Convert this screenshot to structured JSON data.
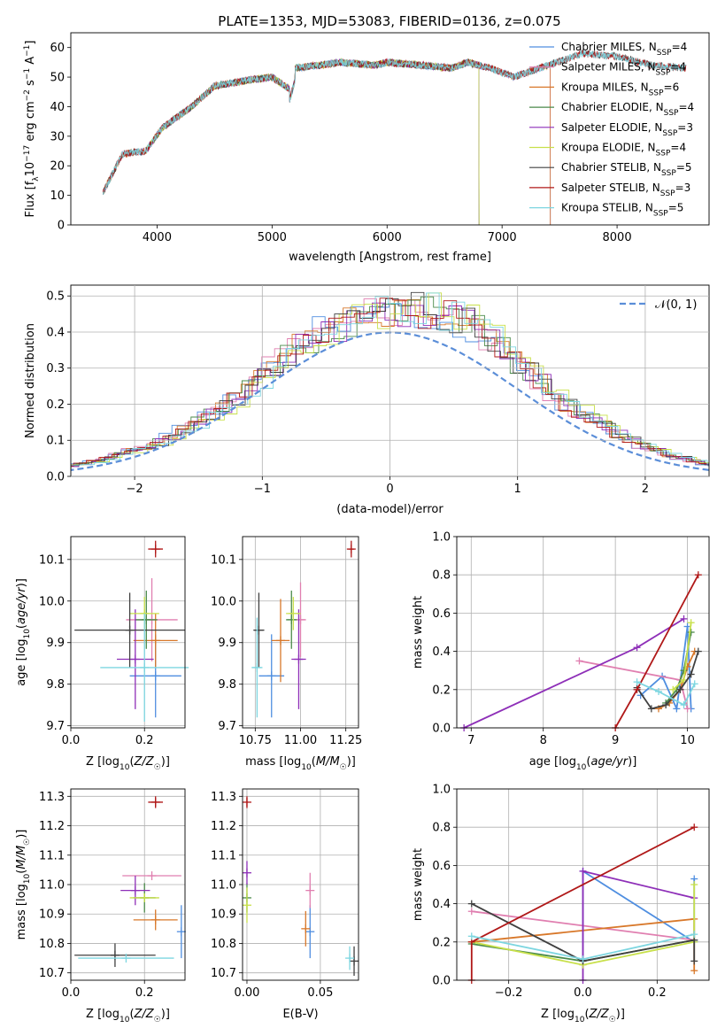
{
  "figure_title": "PLATE=1353, MJD=53083, FIBERID=0136, z=0.075",
  "colors": {
    "Chabrier MILES": "#4f8ee0",
    "Salpeter MILES": "#e07fb0",
    "Kroupa MILES": "#d8782a",
    "Chabrier ELODIE": "#4a8a4a",
    "Salpeter ELODIE": "#8e2fb8",
    "Kroupa ELODIE": "#c8e04a",
    "Chabrier STELIB": "#404040",
    "Salpeter STELIB": "#b01818",
    "Kroupa STELIB": "#7dd6e0",
    "normal": "#5b8ed8"
  },
  "chart_data": [
    {
      "id": "spectrum",
      "type": "line",
      "xlabel": "wavelength [Angstrom, rest frame]",
      "ylabel": "Flux [f_λ10^-17 erg cm^-2 s^-1 A^-1]",
      "xlim": [
        3250,
        8800
      ],
      "ylim": [
        0,
        65
      ],
      "xticks": [
        4000,
        5000,
        6000,
        7000,
        8000
      ],
      "yticks": [
        0,
        10,
        20,
        30,
        40,
        50,
        60
      ],
      "grid": false,
      "legend": "top-right",
      "series": [
        {
          "name": "Chabrier MILES, N_SSP=4",
          "label_base": "Chabrier MILES, N",
          "label_n": "=4",
          "range": [
            3530,
            7420
          ]
        },
        {
          "name": "Salpeter MILES, N_SSP=4",
          "label_base": "Salpeter MILES, N",
          "label_n": "=4",
          "range": [
            3530,
            7420
          ]
        },
        {
          "name": "Kroupa MILES, N_SSP=6",
          "label_base": "Kroupa MILES, N",
          "label_n": "=6",
          "range": [
            3530,
            7420
          ]
        },
        {
          "name": "Chabrier ELODIE, N_SSP=4",
          "label_base": "Chabrier ELODIE, N",
          "label_n": "=4",
          "range": [
            3900,
            6800
          ]
        },
        {
          "name": "Salpeter ELODIE, N_SSP=3",
          "label_base": "Salpeter ELODIE, N",
          "label_n": "=3",
          "range": [
            3900,
            6800
          ]
        },
        {
          "name": "Kroupa ELODIE, N_SSP=4",
          "label_base": "Kroupa ELODIE, N",
          "label_n": "=4",
          "range": [
            3900,
            6800
          ]
        },
        {
          "name": "Chabrier STELIB, N_SSP=5",
          "label_base": "Chabrier STELIB, N",
          "label_n": "=5",
          "range": [
            3530,
            8600
          ]
        },
        {
          "name": "Salpeter STELIB, N_SSP=3",
          "label_base": "Salpeter STELIB, N",
          "label_n": "=3",
          "range": [
            3530,
            8600
          ]
        },
        {
          "name": "Kroupa STELIB, N_SSP=5",
          "label_base": "Kroupa STELIB, N",
          "label_n": "=5",
          "range": [
            3530,
            8600
          ]
        }
      ],
      "data_envelope": {
        "x": [
          3530,
          3700,
          3900,
          4050,
          4300,
          4500,
          4800,
          5000,
          5150,
          5200,
          5400,
          5600,
          5890,
          6000,
          6300,
          6560,
          6700,
          6900,
          7100,
          7400,
          7700,
          8000,
          8300,
          8600
        ],
        "y": [
          11,
          24,
          25,
          33,
          40,
          47,
          49,
          50,
          46,
          53,
          54,
          55,
          54,
          55,
          54,
          53,
          55,
          53,
          50,
          54,
          58,
          57,
          54,
          53
        ]
      }
    },
    {
      "id": "residuals",
      "type": "line",
      "xlabel": "(data-model)/error",
      "ylabel": "Normed distribution",
      "xlim": [
        -2.5,
        2.5
      ],
      "ylim": [
        0,
        0.53
      ],
      "xticks": [
        -2,
        -1,
        0,
        1,
        2
      ],
      "xtick_labels": [
        "−2",
        "−1",
        "0",
        "1",
        "2"
      ],
      "yticks": [
        0,
        0.1,
        0.2,
        0.3,
        0.4,
        0.5
      ],
      "ytick_labels": [
        "0.0",
        "0.1",
        "0.2",
        "0.3",
        "0.4",
        "0.5"
      ],
      "grid": true,
      "legend": "top-right",
      "normal_label": "𝒩(0, 1)",
      "bin_width": 0.1,
      "series_mean": [
        0.022,
        0.025,
        0.03,
        0.035,
        0.04,
        0.05,
        0.06,
        0.07,
        0.08,
        0.095,
        0.11,
        0.13,
        0.15,
        0.17,
        0.19,
        0.21,
        0.24,
        0.27,
        0.3,
        0.33,
        0.36,
        0.38,
        0.4,
        0.41,
        0.43,
        0.44,
        0.45,
        0.45,
        0.46,
        0.46,
        0.46,
        0.45,
        0.44,
        0.43,
        0.41,
        0.38,
        0.35,
        0.32,
        0.29,
        0.26,
        0.23,
        0.2,
        0.18,
        0.16,
        0.14,
        0.12,
        0.1,
        0.085,
        0.07,
        0.06,
        0.05,
        0.042,
        0.035,
        0.03,
        0.025
      ]
    },
    {
      "id": "age_vs_Z",
      "type": "scatter",
      "xlabel": "Z [log10(Z/Z☉)]",
      "ylabel": "age [log10(age/yr)]",
      "xlim": [
        0,
        0.31
      ],
      "ylim": [
        9.695,
        10.155
      ],
      "xticks": [
        0.0,
        0.2
      ],
      "xtick_labels": [
        "0.0",
        "0.2"
      ],
      "yticks": [
        9.7,
        9.8,
        9.9,
        10.0,
        10.1
      ],
      "ytick_labels": [
        "9.7",
        "9.8",
        "9.9",
        "10.0",
        "10.1"
      ],
      "grid": true,
      "points": [
        {
          "model": "Chabrier MILES",
          "x": 0.23,
          "y": 9.82,
          "xerr": 0.07,
          "yerr": 0.1
        },
        {
          "model": "Salpeter MILES",
          "x": 0.22,
          "y": 9.955,
          "xerr": 0.07,
          "yerr": 0.1
        },
        {
          "model": "Kroupa MILES",
          "x": 0.23,
          "y": 9.905,
          "xerr": 0.06,
          "yerr": 0.065
        },
        {
          "model": "Chabrier ELODIE",
          "x": 0.205,
          "y": 9.955,
          "xerr": 0.03,
          "yerr": 0.07
        },
        {
          "model": "Salpeter ELODIE",
          "x": 0.175,
          "y": 9.86,
          "xerr": 0.05,
          "yerr": 0.12
        },
        {
          "model": "Kroupa ELODIE",
          "x": 0.2,
          "y": 9.97,
          "xerr": 0.04,
          "yerr": 0.04
        },
        {
          "model": "Chabrier STELIB",
          "x": 0.16,
          "y": 9.93,
          "xerr": 0.15,
          "yerr": 0.09
        },
        {
          "model": "Salpeter STELIB",
          "x": 0.23,
          "y": 10.125,
          "xerr": 0.02,
          "yerr": 0.02
        },
        {
          "model": "Kroupa STELIB",
          "x": 0.2,
          "y": 9.84,
          "xerr": 0.12,
          "yerr": 0.13
        }
      ]
    },
    {
      "id": "age_vs_mass",
      "type": "scatter",
      "xlabel": "mass [log10(M/M☉)]",
      "ylabel": "",
      "xlim": [
        10.68,
        11.32
      ],
      "ylim": [
        9.695,
        10.155
      ],
      "xticks": [
        10.75,
        11.0,
        11.25
      ],
      "xtick_labels": [
        "10.75",
        "11.00",
        "11.25"
      ],
      "yticks": [
        9.7,
        9.8,
        9.9,
        10.0,
        10.1
      ],
      "ytick_labels": [
        "9.7",
        "9.8",
        "9.9",
        "10.0",
        "10.1"
      ],
      "grid": true,
      "points": [
        {
          "model": "Chabrier MILES",
          "x": 10.84,
          "y": 9.82,
          "xerr": 0.07,
          "yerr": 0.1
        },
        {
          "model": "Salpeter MILES",
          "x": 11.0,
          "y": 9.955,
          "xerr": 0.03,
          "yerr": 0.09
        },
        {
          "model": "Kroupa MILES",
          "x": 10.89,
          "y": 9.905,
          "xerr": 0.05,
          "yerr": 0.1
        },
        {
          "model": "Chabrier ELODIE",
          "x": 10.95,
          "y": 9.955,
          "xerr": 0.03,
          "yerr": 0.07
        },
        {
          "model": "Salpeter ELODIE",
          "x": 10.99,
          "y": 9.86,
          "xerr": 0.04,
          "yerr": 0.12
        },
        {
          "model": "Kroupa ELODIE",
          "x": 10.96,
          "y": 9.97,
          "xerr": 0.04,
          "yerr": 0.04
        },
        {
          "model": "Chabrier STELIB",
          "x": 10.77,
          "y": 9.93,
          "xerr": 0.03,
          "yerr": 0.09
        },
        {
          "model": "Salpeter STELIB",
          "x": 11.28,
          "y": 10.125,
          "xerr": 0.015,
          "yerr": 0.02
        },
        {
          "model": "Kroupa STELIB",
          "x": 10.76,
          "y": 9.84,
          "xerr": 0.03,
          "yerr": 0.12
        }
      ]
    },
    {
      "id": "weight_vs_age",
      "type": "line",
      "xlabel": "age [log10(age/yr)]",
      "ylabel": "mass weight",
      "xlim": [
        6.8,
        10.3
      ],
      "ylim": [
        0,
        1.0
      ],
      "xticks": [
        7,
        8,
        9,
        10
      ],
      "xtick_labels": [
        "7",
        "8",
        "9",
        "10"
      ],
      "yticks": [
        0,
        0.2,
        0.4,
        0.6,
        0.8,
        1.0
      ],
      "ytick_labels": [
        "0.0",
        "0.2",
        "0.4",
        "0.6",
        "0.8",
        "1.0"
      ],
      "grid": true,
      "series": [
        {
          "model": "Chabrier MILES",
          "x": [
            9.35,
            9.65,
            9.85,
            10.0,
            10.05
          ],
          "y": [
            0.17,
            0.27,
            0.1,
            0.53,
            0.1
          ]
        },
        {
          "model": "Salpeter MILES",
          "x": [
            8.5,
            9.9,
            10.0
          ],
          "y": [
            0.35,
            0.25,
            0.1
          ]
        },
        {
          "model": "Kroupa MILES",
          "x": [
            9.6,
            9.75,
            9.9,
            10.0,
            10.1
          ],
          "y": [
            0.1,
            0.13,
            0.2,
            0.32,
            0.4
          ]
        },
        {
          "model": "Chabrier ELODIE",
          "x": [
            9.7,
            9.85,
            9.95,
            10.05
          ],
          "y": [
            0.13,
            0.2,
            0.3,
            0.5
          ]
        },
        {
          "model": "Salpeter ELODIE",
          "x": [
            6.9,
            9.3,
            9.95
          ],
          "y": [
            0.0,
            0.42,
            0.57
          ]
        },
        {
          "model": "Kroupa ELODIE",
          "x": [
            9.8,
            9.95,
            10.05
          ],
          "y": [
            0.2,
            0.25,
            0.55
          ]
        },
        {
          "model": "Chabrier STELIB",
          "x": [
            9.3,
            9.5,
            9.7,
            9.9,
            10.05,
            10.15
          ],
          "y": [
            0.21,
            0.1,
            0.12,
            0.2,
            0.28,
            0.4
          ]
        },
        {
          "model": "Salpeter STELIB",
          "x": [
            9.0,
            9.3,
            10.15
          ],
          "y": [
            0.0,
            0.2,
            0.8
          ]
        },
        {
          "model": "Kroupa STELIB",
          "x": [
            9.3,
            9.6,
            9.95,
            10.1
          ],
          "y": [
            0.24,
            0.19,
            0.12,
            0.23
          ]
        }
      ]
    },
    {
      "id": "mass_vs_Z",
      "type": "scatter",
      "xlabel": "Z [log10(Z/Z☉)]",
      "ylabel": "mass [log10(M/M☉)]",
      "xlim": [
        0,
        0.31
      ],
      "ylim": [
        10.675,
        11.325
      ],
      "xticks": [
        0.0,
        0.2
      ],
      "xtick_labels": [
        "0.0",
        "0.2"
      ],
      "yticks": [
        10.7,
        10.8,
        10.9,
        11.0,
        11.1,
        11.2,
        11.3
      ],
      "ytick_labels": [
        "10.7",
        "10.8",
        "10.9",
        "11.0",
        "11.1",
        "11.2",
        "11.3"
      ],
      "grid": true,
      "points": [
        {
          "model": "Chabrier MILES",
          "x": 0.3,
          "y": 10.84,
          "xerr": 0.0,
          "yerr": 0.09
        },
        {
          "model": "Salpeter MILES",
          "x": 0.22,
          "y": 11.03,
          "xerr": 0.08,
          "yerr": 0.0
        },
        {
          "model": "Kroupa MILES",
          "x": 0.23,
          "y": 10.88,
          "xerr": 0.06,
          "yerr": 0.035
        },
        {
          "model": "Chabrier ELODIE",
          "x": 0.2,
          "y": 10.955,
          "xerr": 0.03,
          "yerr": 0.05
        },
        {
          "model": "Salpeter ELODIE",
          "x": 0.175,
          "y": 10.98,
          "xerr": 0.04,
          "yerr": 0.05
        },
        {
          "model": "Kroupa ELODIE",
          "x": 0.2,
          "y": 10.955,
          "xerr": 0.04,
          "yerr": 0.0
        },
        {
          "model": "Chabrier STELIB",
          "x": 0.12,
          "y": 10.76,
          "xerr": 0.11,
          "yerr": 0.04
        },
        {
          "model": "Salpeter STELIB",
          "x": 0.23,
          "y": 11.28,
          "xerr": 0.02,
          "yerr": 0.02
        },
        {
          "model": "Kroupa STELIB",
          "x": 0.15,
          "y": 10.75,
          "xerr": 0.13,
          "yerr": 0.0
        }
      ]
    },
    {
      "id": "mass_vs_EBV",
      "type": "scatter",
      "xlabel": "E(B-V)",
      "ylabel": "",
      "xlim": [
        -0.003,
        0.076
      ],
      "ylim": [
        10.675,
        11.325
      ],
      "xticks": [
        0.0,
        0.05
      ],
      "xtick_labels": [
        "0.00",
        "0.05"
      ],
      "yticks": [
        10.7,
        10.8,
        10.9,
        11.0,
        11.1,
        11.2,
        11.3
      ],
      "ytick_labels": [
        "10.7",
        "10.8",
        "10.9",
        "11.0",
        "11.1",
        "11.2",
        "11.3"
      ],
      "grid": true,
      "points": [
        {
          "model": "Chabrier MILES",
          "x": 0.043,
          "y": 10.84,
          "xerr": 0.0,
          "yerr": 0.09
        },
        {
          "model": "Salpeter MILES",
          "x": 0.043,
          "y": 10.98,
          "xerr": 0.0,
          "yerr": 0.06
        },
        {
          "model": "Kroupa MILES",
          "x": 0.04,
          "y": 10.85,
          "xerr": 0.0,
          "yerr": 0.06
        },
        {
          "model": "Chabrier ELODIE",
          "x": 0.0,
          "y": 10.955,
          "xerr": 0.0,
          "yerr": 0.05
        },
        {
          "model": "Salpeter ELODIE",
          "x": 0.0,
          "y": 11.04,
          "xerr": 0.0,
          "yerr": 0.04
        },
        {
          "model": "Kroupa ELODIE",
          "x": 0.0,
          "y": 10.93,
          "xerr": 0.0,
          "yerr": 0.06
        },
        {
          "model": "Chabrier STELIB",
          "x": 0.073,
          "y": 10.74,
          "xerr": 0.0,
          "yerr": 0.05
        },
        {
          "model": "Salpeter STELIB",
          "x": 0.0,
          "y": 11.28,
          "xerr": 0.0,
          "yerr": 0.02
        },
        {
          "model": "Kroupa STELIB",
          "x": 0.07,
          "y": 10.75,
          "xerr": 0.0,
          "yerr": 0.04
        }
      ]
    },
    {
      "id": "weight_vs_Z",
      "type": "line",
      "xlabel": "Z [log10(Z/Z☉)]",
      "ylabel": "mass weight",
      "xlim": [
        -0.34,
        0.34
      ],
      "ylim": [
        0,
        1.0
      ],
      "xticks": [
        -0.2,
        0.0,
        0.2
      ],
      "xtick_labels": [
        "−0.2",
        "0.0",
        "0.2"
      ],
      "yticks": [
        0,
        0.2,
        0.4,
        0.6,
        0.8,
        1.0
      ],
      "ytick_labels": [
        "0.0",
        "0.2",
        "0.4",
        "0.6",
        "0.8",
        "1.0"
      ],
      "grid": true,
      "series": [
        {
          "model": "Chabrier MILES",
          "x": [
            0.0,
            0.0,
            0.3,
            0.3
          ],
          "y": [
            0.1,
            0.57,
            0.2,
            0.53
          ]
        },
        {
          "model": "Salpeter MILES",
          "x": [
            -0.3,
            0.3
          ],
          "y": [
            0.36,
            0.21
          ]
        },
        {
          "model": "Kroupa MILES",
          "x": [
            -0.3,
            0.3,
            0.3
          ],
          "y": [
            0.2,
            0.32,
            0.05
          ]
        },
        {
          "model": "Chabrier ELODIE",
          "x": [
            -0.3,
            0.0,
            0.3
          ],
          "y": [
            0.19,
            0.1,
            0.21
          ]
        },
        {
          "model": "Salpeter ELODIE",
          "x": [
            0.0,
            0.0,
            0.3
          ],
          "y": [
            0.0,
            0.57,
            0.43
          ]
        },
        {
          "model": "Kroupa ELODIE",
          "x": [
            -0.3,
            0.0,
            0.3,
            0.3
          ],
          "y": [
            0.2,
            0.08,
            0.2,
            0.5
          ]
        },
        {
          "model": "Chabrier STELIB",
          "x": [
            -0.3,
            0.0,
            0.3,
            0.3
          ],
          "y": [
            0.4,
            0.1,
            0.21,
            0.1
          ]
        },
        {
          "model": "Salpeter STELIB",
          "x": [
            -0.3,
            -0.3,
            0.3
          ],
          "y": [
            0.0,
            0.2,
            0.8
          ]
        },
        {
          "model": "Kroupa STELIB",
          "x": [
            -0.3,
            0.0,
            0.3
          ],
          "y": [
            0.23,
            0.11,
            0.24
          ]
        }
      ]
    }
  ]
}
